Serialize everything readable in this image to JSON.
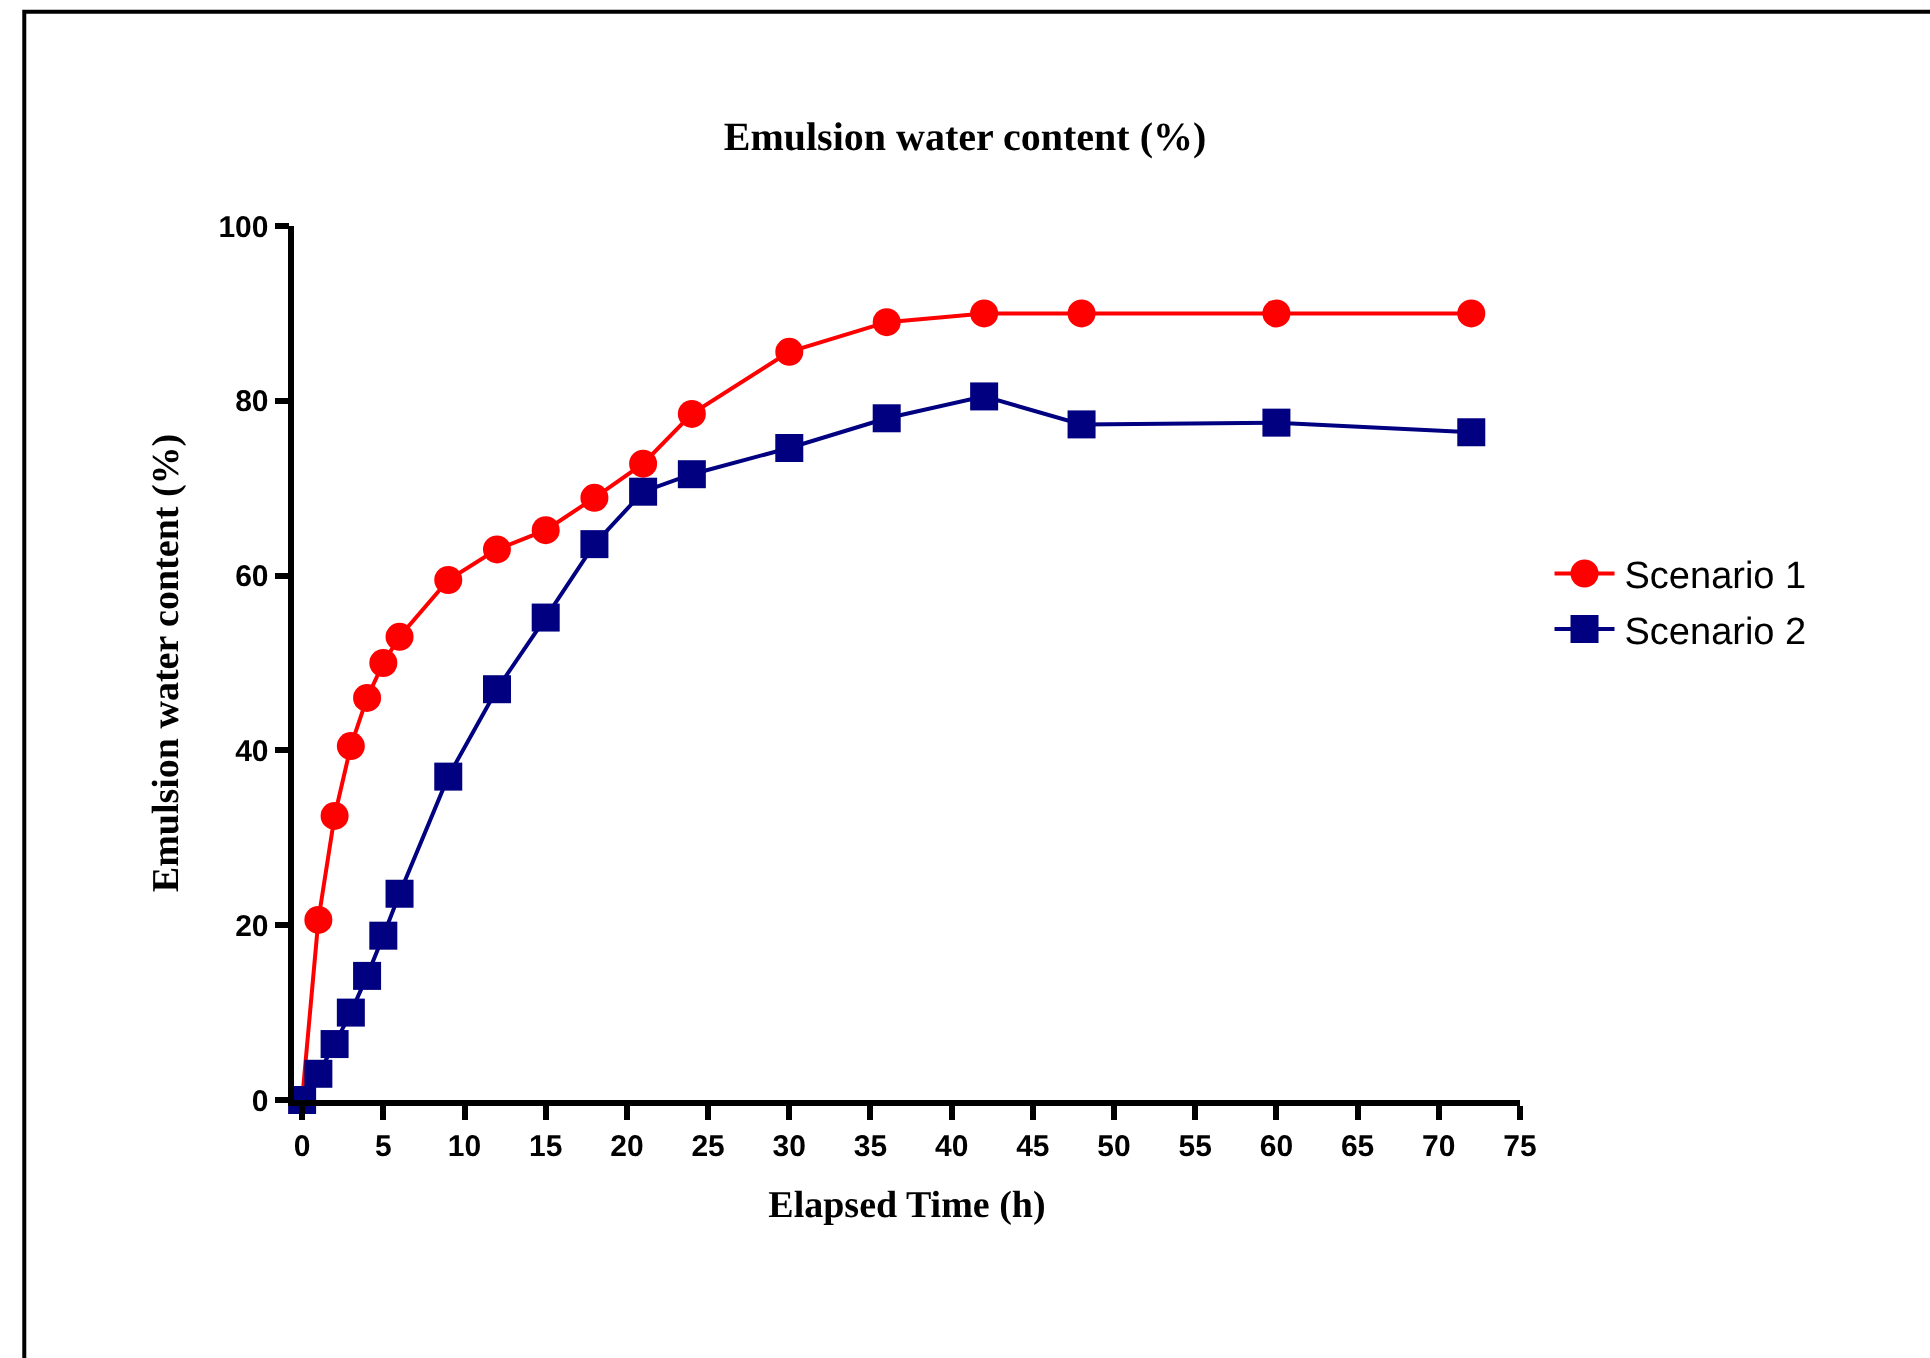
{
  "chart_data": {
    "type": "line",
    "title": "Emulsion water content (%)",
    "xlabel": "Elapsed Time (h)",
    "ylabel": "Emulsion water content (%)",
    "x": [
      0,
      1,
      2,
      3,
      4,
      5,
      6,
      9,
      12,
      15,
      18,
      21,
      24,
      30,
      36,
      42,
      48,
      60,
      72
    ],
    "series": [
      {
        "name": "Scenario 1",
        "color": "#ff0000",
        "marker": "circle",
        "values": [
          0,
          20.6,
          32.5,
          40.5,
          46,
          50,
          53,
          59.5,
          63,
          65.2,
          68.9,
          72.8,
          78.5,
          85.6,
          89,
          90,
          90,
          90,
          90
        ]
      },
      {
        "name": "Scenario 2",
        "color": "#000080",
        "marker": "square",
        "values": [
          0,
          3,
          6.4,
          10,
          14.2,
          18.8,
          23.6,
          37,
          47,
          55.2,
          63.6,
          69.6,
          71.6,
          74.6,
          78,
          80.5,
          77.3,
          77.5,
          76.4
        ]
      }
    ],
    "xlim": [
      -0.5,
      75
    ],
    "xticks": [
      0,
      5,
      10,
      15,
      20,
      25,
      30,
      35,
      40,
      45,
      50,
      55,
      60,
      65,
      70,
      75
    ],
    "ylim": [
      0,
      100
    ],
    "yticks": [
      0,
      20,
      40,
      60,
      80,
      100
    ],
    "legend": "right",
    "line_style": "solid"
  }
}
